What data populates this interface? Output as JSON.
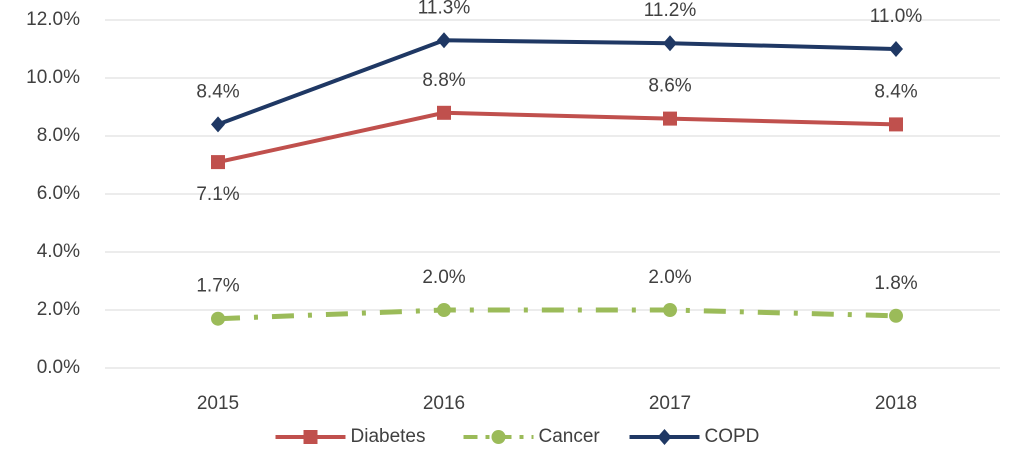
{
  "chart_data": {
    "type": "line",
    "categories": [
      "2015",
      "2016",
      "2017",
      "2018"
    ],
    "series": [
      {
        "name": "Diabetes",
        "color": "#c0504d",
        "values": [
          7.1,
          8.8,
          8.6,
          8.4
        ],
        "value_labels": [
          "7.1%",
          "8.8%",
          "8.6%",
          "8.4%"
        ],
        "marker": "square",
        "dash": "solid"
      },
      {
        "name": "Cancer",
        "color": "#9bbb59",
        "values": [
          1.7,
          2.0,
          2.0,
          1.8
        ],
        "value_labels": [
          "1.7%",
          "2.0%",
          "2.0%",
          "1.8%"
        ],
        "marker": "circle",
        "dash": "dashdot"
      },
      {
        "name": "COPD",
        "color": "#1f3864",
        "values": [
          8.4,
          11.3,
          11.2,
          11.0
        ],
        "value_labels": [
          "8.4%",
          "11.3%",
          "11.2%",
          "11.0%"
        ],
        "marker": "diamond",
        "dash": "solid"
      }
    ],
    "ylim": [
      0,
      12
    ],
    "yticks": [
      {
        "value": 0,
        "label": "0.0%"
      },
      {
        "value": 2,
        "label": "2.0%"
      },
      {
        "value": 4,
        "label": "4.0%"
      },
      {
        "value": 6,
        "label": "6.0%"
      },
      {
        "value": 8,
        "label": "8.0%"
      },
      {
        "value": 10,
        "label": "10.0%"
      },
      {
        "value": 12,
        "label": "12.0%"
      }
    ],
    "grid": true,
    "legend": "bottom"
  }
}
